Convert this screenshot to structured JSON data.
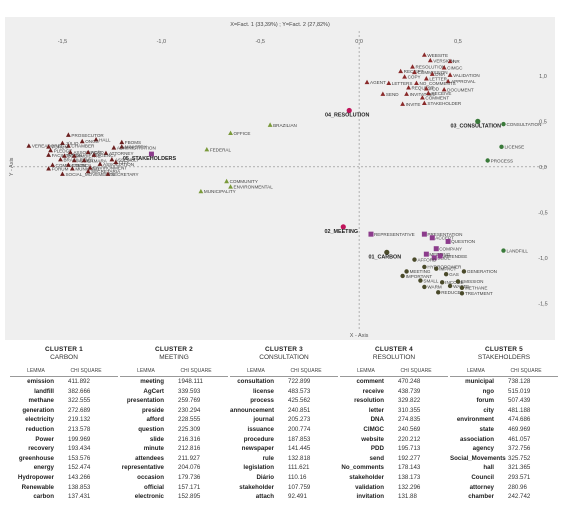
{
  "chart_data": {
    "type": "scatter",
    "title": "X=Fact. 1 (33,39%) ; Y=Fact. 2 (27,82%)",
    "xlabel": "X - Axis",
    "ylabel": "Y - Axis",
    "xlim": [
      -1.75,
      0.95
    ],
    "ylim": [
      -1.75,
      1.45
    ],
    "x_ticks": [
      "-1,5",
      "-1,0",
      "-0,5",
      "0,0",
      "0,5"
    ],
    "x_tick_values": [
      -1.5,
      -1.0,
      -0.5,
      0.0,
      0.5
    ],
    "y_ticks": [
      "1,0",
      "0,5",
      "0,0",
      "-0,5",
      "-1,0",
      "-1,5"
    ],
    "y_tick_values": [
      1.0,
      0.5,
      0.0,
      -0.5,
      -1.0,
      -1.5
    ],
    "series": [
      {
        "color": "#c0145a",
        "marker": "circle",
        "points": [
          {
            "x": -0.05,
            "y": 0.62,
            "label": "04_RESOLUTION",
            "bold": true
          },
          {
            "x": -0.08,
            "y": -0.66,
            "label": "02_MEETING",
            "bold": true
          }
        ]
      },
      {
        "color": "#8c3c8c",
        "marker": "square",
        "points": [
          {
            "x": -1.05,
            "y": 0.14,
            "label": "05_STAKEHOLDERS",
            "bold": true
          },
          {
            "x": 0.06,
            "y": -0.74,
            "label": "REPRESENTATIVE"
          },
          {
            "x": 0.33,
            "y": -0.74,
            "label": "PRESENTATION"
          },
          {
            "x": 0.37,
            "y": -0.78,
            "label": "ACCEPT"
          },
          {
            "x": 0.39,
            "y": -0.9,
            "label": "COMPANY"
          },
          {
            "x": 0.45,
            "y": -0.82,
            "label": "QUESTION"
          },
          {
            "x": 0.34,
            "y": -0.96,
            "label": "MEETING"
          },
          {
            "x": 0.38,
            "y": -1.0,
            "label": "SLIDE"
          },
          {
            "x": 0.41,
            "y": -0.98,
            "label": "ATTENDEE"
          }
        ]
      },
      {
        "color": "#3a7a3a",
        "marker": "circle",
        "points": [
          {
            "x": 0.6,
            "y": 0.5,
            "label": "03_CONSULTATION",
            "bold": true
          },
          {
            "x": 0.73,
            "y": 0.47,
            "label": "CONSULTATION"
          },
          {
            "x": 0.72,
            "y": 0.22,
            "label": "LICENSE"
          },
          {
            "x": 0.65,
            "y": 0.07,
            "label": "PROCESS"
          },
          {
            "x": 0.73,
            "y": -0.92,
            "label": "LANDFILL"
          }
        ]
      },
      {
        "color": "#7a9a3a",
        "marker": "triangle",
        "points": [
          {
            "x": -0.65,
            "y": 0.37,
            "label": "OFFICE"
          },
          {
            "x": -0.45,
            "y": 0.46,
            "label": "BRAZILIAN"
          },
          {
            "x": -0.77,
            "y": 0.19,
            "label": "FEDERAL"
          },
          {
            "x": -0.67,
            "y": -0.16,
            "label": "COMMUNITY"
          },
          {
            "x": -0.65,
            "y": -0.22,
            "label": "ENVIRONMENTAL"
          },
          {
            "x": -0.8,
            "y": -0.27,
            "label": "MUNICIPALITY"
          }
        ]
      },
      {
        "color": "#6b1f1f",
        "marker": "triangle",
        "points": [
          {
            "x": -1.2,
            "y": 0.27,
            "label": "FBOMS"
          },
          {
            "x": -1.2,
            "y": 0.22,
            "label": "MINISTRY"
          },
          {
            "x": -1.47,
            "y": 0.35,
            "label": "PROSECUTOR"
          },
          {
            "x": -1.33,
            "y": 0.3,
            "label": "HALL"
          },
          {
            "x": -1.4,
            "y": 0.28,
            "label": "ONGS"
          },
          {
            "x": -1.5,
            "y": 0.26,
            "label": "JÚLIO"
          },
          {
            "x": -1.47,
            "y": 0.23,
            "label": "CHAMBER"
          },
          {
            "x": -1.24,
            "y": 0.21,
            "label": "ADMINISTRATION"
          },
          {
            "x": -1.67,
            "y": 0.23,
            "label": "VEREADORES"
          },
          {
            "x": -1.57,
            "y": 0.22,
            "label": "FORUM"
          },
          {
            "x": -1.56,
            "y": 0.18,
            "label": "PLEDGE"
          },
          {
            "x": -1.46,
            "y": 0.16,
            "label": "ASSOCIAÇÃO"
          },
          {
            "x": -1.37,
            "y": 0.16,
            "label": "NGO"
          },
          {
            "x": -1.28,
            "y": 0.15,
            "label": "ATTORNEY"
          },
          {
            "x": -1.57,
            "y": 0.13,
            "label": "FACILITATION"
          },
          {
            "x": -1.49,
            "y": 0.12,
            "label": "BODY"
          },
          {
            "x": -1.44,
            "y": 0.12,
            "label": "AMBIENTE"
          },
          {
            "x": -1.34,
            "y": 0.13,
            "label": "AGENCY"
          },
          {
            "x": -1.51,
            "y": 0.08,
            "label": "BRASILEIRO"
          },
          {
            "x": -1.44,
            "y": 0.07,
            "label": "ASSIST"
          },
          {
            "x": -1.39,
            "y": 0.07,
            "label": "CÂMARA"
          },
          {
            "x": -1.25,
            "y": 0.08,
            "label": "ASSEMBLY"
          },
          {
            "x": -1.55,
            "y": 0.02,
            "label": "COMPLETION"
          },
          {
            "x": -1.47,
            "y": 0.02,
            "label": "COUNCIL"
          },
          {
            "x": -1.31,
            "y": 0.03,
            "label": "ASSOCIATION"
          },
          {
            "x": -1.23,
            "y": 0.05,
            "label": "CITY"
          },
          {
            "x": -1.57,
            "y": -0.02,
            "label": "FORUM"
          },
          {
            "x": -1.45,
            "y": -0.02,
            "label": "MUNICIPAL"
          },
          {
            "x": -1.36,
            "y": -0.01,
            "label": "ENVIRONMENT"
          },
          {
            "x": -1.37,
            "y": -0.05,
            "label": "SECRETARIA"
          },
          {
            "x": -1.5,
            "y": -0.08,
            "label": "SOCIAL_MOVEMENTS"
          },
          {
            "x": -1.27,
            "y": -0.08,
            "label": "SECRETARY"
          }
        ]
      },
      {
        "color": "#8a2a2a",
        "marker": "triangle",
        "points": [
          {
            "x": 0.33,
            "y": 1.23,
            "label": "WEBSITE"
          },
          {
            "x": 0.36,
            "y": 1.17,
            "label": "VERSION"
          },
          {
            "x": 0.46,
            "y": 1.16,
            "label": "NR"
          },
          {
            "x": 0.27,
            "y": 1.1,
            "label": "RESOLUTION"
          },
          {
            "x": 0.43,
            "y": 1.09,
            "label": "CIMGC"
          },
          {
            "x": 0.21,
            "y": 1.05,
            "label": "RECEIPT"
          },
          {
            "x": 0.28,
            "y": 1.04,
            "label": "COMMISSION"
          },
          {
            "x": 0.37,
            "y": 1.02,
            "label": "DNA"
          },
          {
            "x": 0.46,
            "y": 1.01,
            "label": "VALIDATION"
          },
          {
            "x": 0.23,
            "y": 0.99,
            "label": "COPY"
          },
          {
            "x": 0.34,
            "y": 0.97,
            "label": "LETTER"
          },
          {
            "x": 0.45,
            "y": 0.94,
            "label": "APPROVAL"
          },
          {
            "x": 0.04,
            "y": 0.93,
            "label": "AGENT"
          },
          {
            "x": 0.15,
            "y": 0.92,
            "label": "LETTERS"
          },
          {
            "x": 0.29,
            "y": 0.92,
            "label": "NO_COMMENTS"
          },
          {
            "x": 0.25,
            "y": 0.87,
            "label": "REQUEST"
          },
          {
            "x": 0.34,
            "y": 0.86,
            "label": "PDD"
          },
          {
            "x": 0.43,
            "y": 0.85,
            "label": "DOCUMENT"
          },
          {
            "x": 0.12,
            "y": 0.8,
            "label": "SEND"
          },
          {
            "x": 0.24,
            "y": 0.8,
            "label": "INVITATION"
          },
          {
            "x": 0.35,
            "y": 0.81,
            "label": "RECEIVE"
          },
          {
            "x": 0.32,
            "y": 0.76,
            "label": "COMMENT"
          },
          {
            "x": 0.22,
            "y": 0.69,
            "label": "INVITE"
          },
          {
            "x": 0.33,
            "y": 0.7,
            "label": "STAKEHOLDER"
          }
        ]
      },
      {
        "color": "#4a4a2a",
        "marker": "circle",
        "points": [
          {
            "x": 0.14,
            "y": -0.94,
            "label": "01_CARBON",
            "bold": true
          },
          {
            "x": 0.28,
            "y": -1.02,
            "label": "AFFORD"
          },
          {
            "x": 0.33,
            "y": -1.1,
            "label": "HYDROPOWER"
          },
          {
            "x": 0.24,
            "y": -1.15,
            "label": "MEETING"
          },
          {
            "x": 0.22,
            "y": -1.2,
            "label": "IMPORTANT"
          },
          {
            "x": 0.39,
            "y": -1.12,
            "label": "IMPACT"
          },
          {
            "x": 0.44,
            "y": -1.18,
            "label": "GAS"
          },
          {
            "x": 0.53,
            "y": -1.15,
            "label": "GENERATION"
          },
          {
            "x": 0.31,
            "y": -1.25,
            "label": "SMALL"
          },
          {
            "x": 0.42,
            "y": -1.27,
            "label": "INCOME"
          },
          {
            "x": 0.5,
            "y": -1.26,
            "label": "EMISSION"
          },
          {
            "x": 0.33,
            "y": -1.32,
            "label": "WARM"
          },
          {
            "x": 0.46,
            "y": -1.31,
            "label": "WASTE"
          },
          {
            "x": 0.52,
            "y": -1.33,
            "label": "METHANE"
          },
          {
            "x": 0.4,
            "y": -1.38,
            "label": "REDUCE"
          },
          {
            "x": 0.52,
            "y": -1.39,
            "label": "TREATMENT"
          }
        ]
      }
    ]
  },
  "clusters": [
    {
      "title": "CLUSTER 1",
      "subtitle": "CARBON",
      "col_lemma": "LEMMA",
      "col_chi": "CHI SQUARE",
      "rows": [
        [
          "emission",
          "411.892"
        ],
        [
          "landfill",
          "382.666"
        ],
        [
          "methane",
          "322.555"
        ],
        [
          "generation",
          "272.689"
        ],
        [
          "electricity",
          "219.132"
        ],
        [
          "reduction",
          "213.578"
        ],
        [
          "Power",
          "199.969"
        ],
        [
          "recovery",
          "193.434"
        ],
        [
          "greenhouse",
          "153.576"
        ],
        [
          "energy",
          "152.474"
        ],
        [
          "Hydropower",
          "143.266"
        ],
        [
          "Renewable",
          "138.853"
        ],
        [
          "carbon",
          "137.431"
        ]
      ]
    },
    {
      "title": "CLUSTER 2",
      "subtitle": "MEETING",
      "col_lemma": "LEMMA",
      "col_chi": "CHI SQUARE",
      "rows": [
        [
          "meeting",
          "1948.111"
        ],
        [
          "AgCert",
          "339.593"
        ],
        [
          "presentation",
          "259.769"
        ],
        [
          "preside",
          "230.294"
        ],
        [
          "afford",
          "228.555"
        ],
        [
          "question",
          "225.309"
        ],
        [
          "slide",
          "216.316"
        ],
        [
          "minute",
          "212.816"
        ],
        [
          "attendees",
          "211.927"
        ],
        [
          "representative",
          "204.076"
        ],
        [
          "occasion",
          "179.736"
        ],
        [
          "official",
          "157.171"
        ],
        [
          "electronic",
          "152.895"
        ]
      ]
    },
    {
      "title": "CLUSTER 3",
      "subtitle": "CONSULTATION",
      "col_lemma": "LEMMA",
      "col_chi": "CHI SQUARE",
      "rows": [
        [
          "consultation",
          "722.899"
        ],
        [
          "license",
          "483.573"
        ],
        [
          "process",
          "425.562"
        ],
        [
          "announcement",
          "240.851"
        ],
        [
          "journal",
          "205.273"
        ],
        [
          "issuance",
          "200.774"
        ],
        [
          "procedure",
          "187.853"
        ],
        [
          "newspaper",
          "141.445"
        ],
        [
          "rule",
          "132.818"
        ],
        [
          "legislation",
          "111.621"
        ],
        [
          "Diário",
          "110.16"
        ],
        [
          "stakeholder",
          "107.759"
        ],
        [
          "attach",
          "92.491"
        ]
      ]
    },
    {
      "title": "CLUSTER 4",
      "subtitle": "RESOLUTION",
      "col_lemma": "LEMMA",
      "col_chi": "CHI SQUARE",
      "rows": [
        [
          "comment",
          "470.248"
        ],
        [
          "receive",
          "438.739"
        ],
        [
          "resolution",
          "329.822"
        ],
        [
          "letter",
          "310.355"
        ],
        [
          "DNA",
          "274.835"
        ],
        [
          "CIMGC",
          "240.569"
        ],
        [
          "website",
          "220.212"
        ],
        [
          "PDD",
          "195.713"
        ],
        [
          "send",
          "192.277"
        ],
        [
          "No_comments",
          "178.143"
        ],
        [
          "stakeholder",
          "138.173"
        ],
        [
          "validation",
          "132.296"
        ],
        [
          "invitation",
          "131.88"
        ]
      ]
    },
    {
      "title": "CLUSTER 5",
      "subtitle": "STAKEHOLDERS",
      "col_lemma": "LEMMA",
      "col_chi": "CHI SQUARE",
      "rows": [
        [
          "municipal",
          "738.128"
        ],
        [
          "ngo",
          "515.019"
        ],
        [
          "forum",
          "507.439"
        ],
        [
          "city",
          "481.188"
        ],
        [
          "environment",
          "474.686"
        ],
        [
          "state",
          "469.969"
        ],
        [
          "association",
          "461.057"
        ],
        [
          "agency",
          "372.756"
        ],
        [
          "Social_Movements",
          "325.752"
        ],
        [
          "hall",
          "321.365"
        ],
        [
          "Council",
          "293.571"
        ],
        [
          "attorney",
          "280.96"
        ],
        [
          "chamber",
          "242.742"
        ]
      ]
    }
  ]
}
